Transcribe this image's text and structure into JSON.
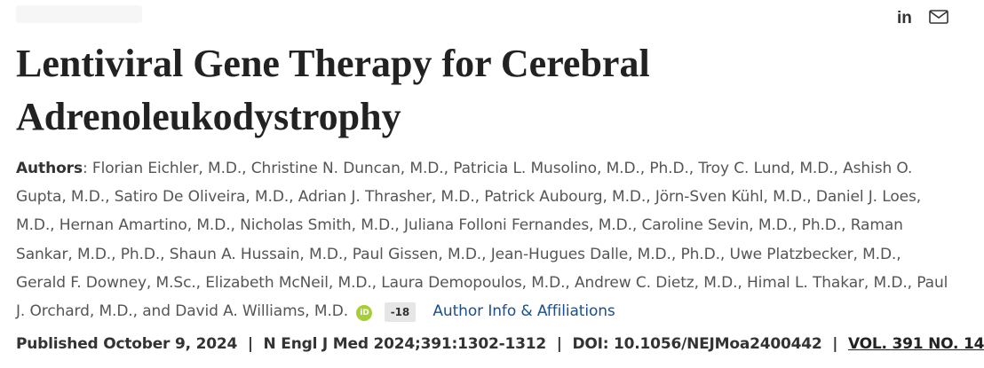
{
  "article": {
    "title": "Lentiviral Gene Therapy for Cerebral Adrenoleukodystrophy",
    "authors_label": "Authors",
    "authors_text": "Florian Eichler, M.D., Christine N. Duncan, M.D., Patricia L. Musolino, M.D., Ph.D., Troy C. Lund, M.D., Ashish O. Gupta, M.D., Satiro De Oliveira, M.D., Adrian J. Thrasher, M.D., Patrick Aubourg, M.D., Jörn-Sven Kühl, M.D., Daniel J. Loes, M.D., Hernan Amartino, M.D., Nicholas Smith, M.D., Juliana Folloni Fernandes, M.D., Caroline Sevin, M.D., Ph.D., Raman Sankar, M.D., Ph.D., Shaun A. Hussain, M.D., Paul Gissen, M.D., Jean-Hugues Dalle, M.D., Ph.D., Uwe Platzbecker, M.D., Gerald F. Downey, M.Sc., Elizabeth McNeil, M.D., Laura Demopoulos, M.D., Andrew C. Dietz, M.D., Himal L. Thakar, M.D., Paul J. Orchard, M.D., and David A. Williams, M.D.",
    "orcid_label": "iD",
    "more_authors_badge": "-18",
    "affiliations_link": "Author Info & Affiliations"
  },
  "publication": {
    "published": "Published October 9, 2024",
    "citation": "N Engl J Med 2024;391:1302-1312",
    "doi": "DOI: 10.1056/NEJMoa2400442",
    "volume": "VOL. 391 NO. 14",
    "separator": "|"
  },
  "share": {
    "linkedin_label": "in",
    "icons": [
      "linkedin-icon",
      "email-icon"
    ]
  },
  "colors": {
    "text": "#222222",
    "muted": "#555555",
    "link": "#1a4f8b",
    "orcid": "#a6ce39",
    "badge_bg": "#e6e6e6"
  }
}
